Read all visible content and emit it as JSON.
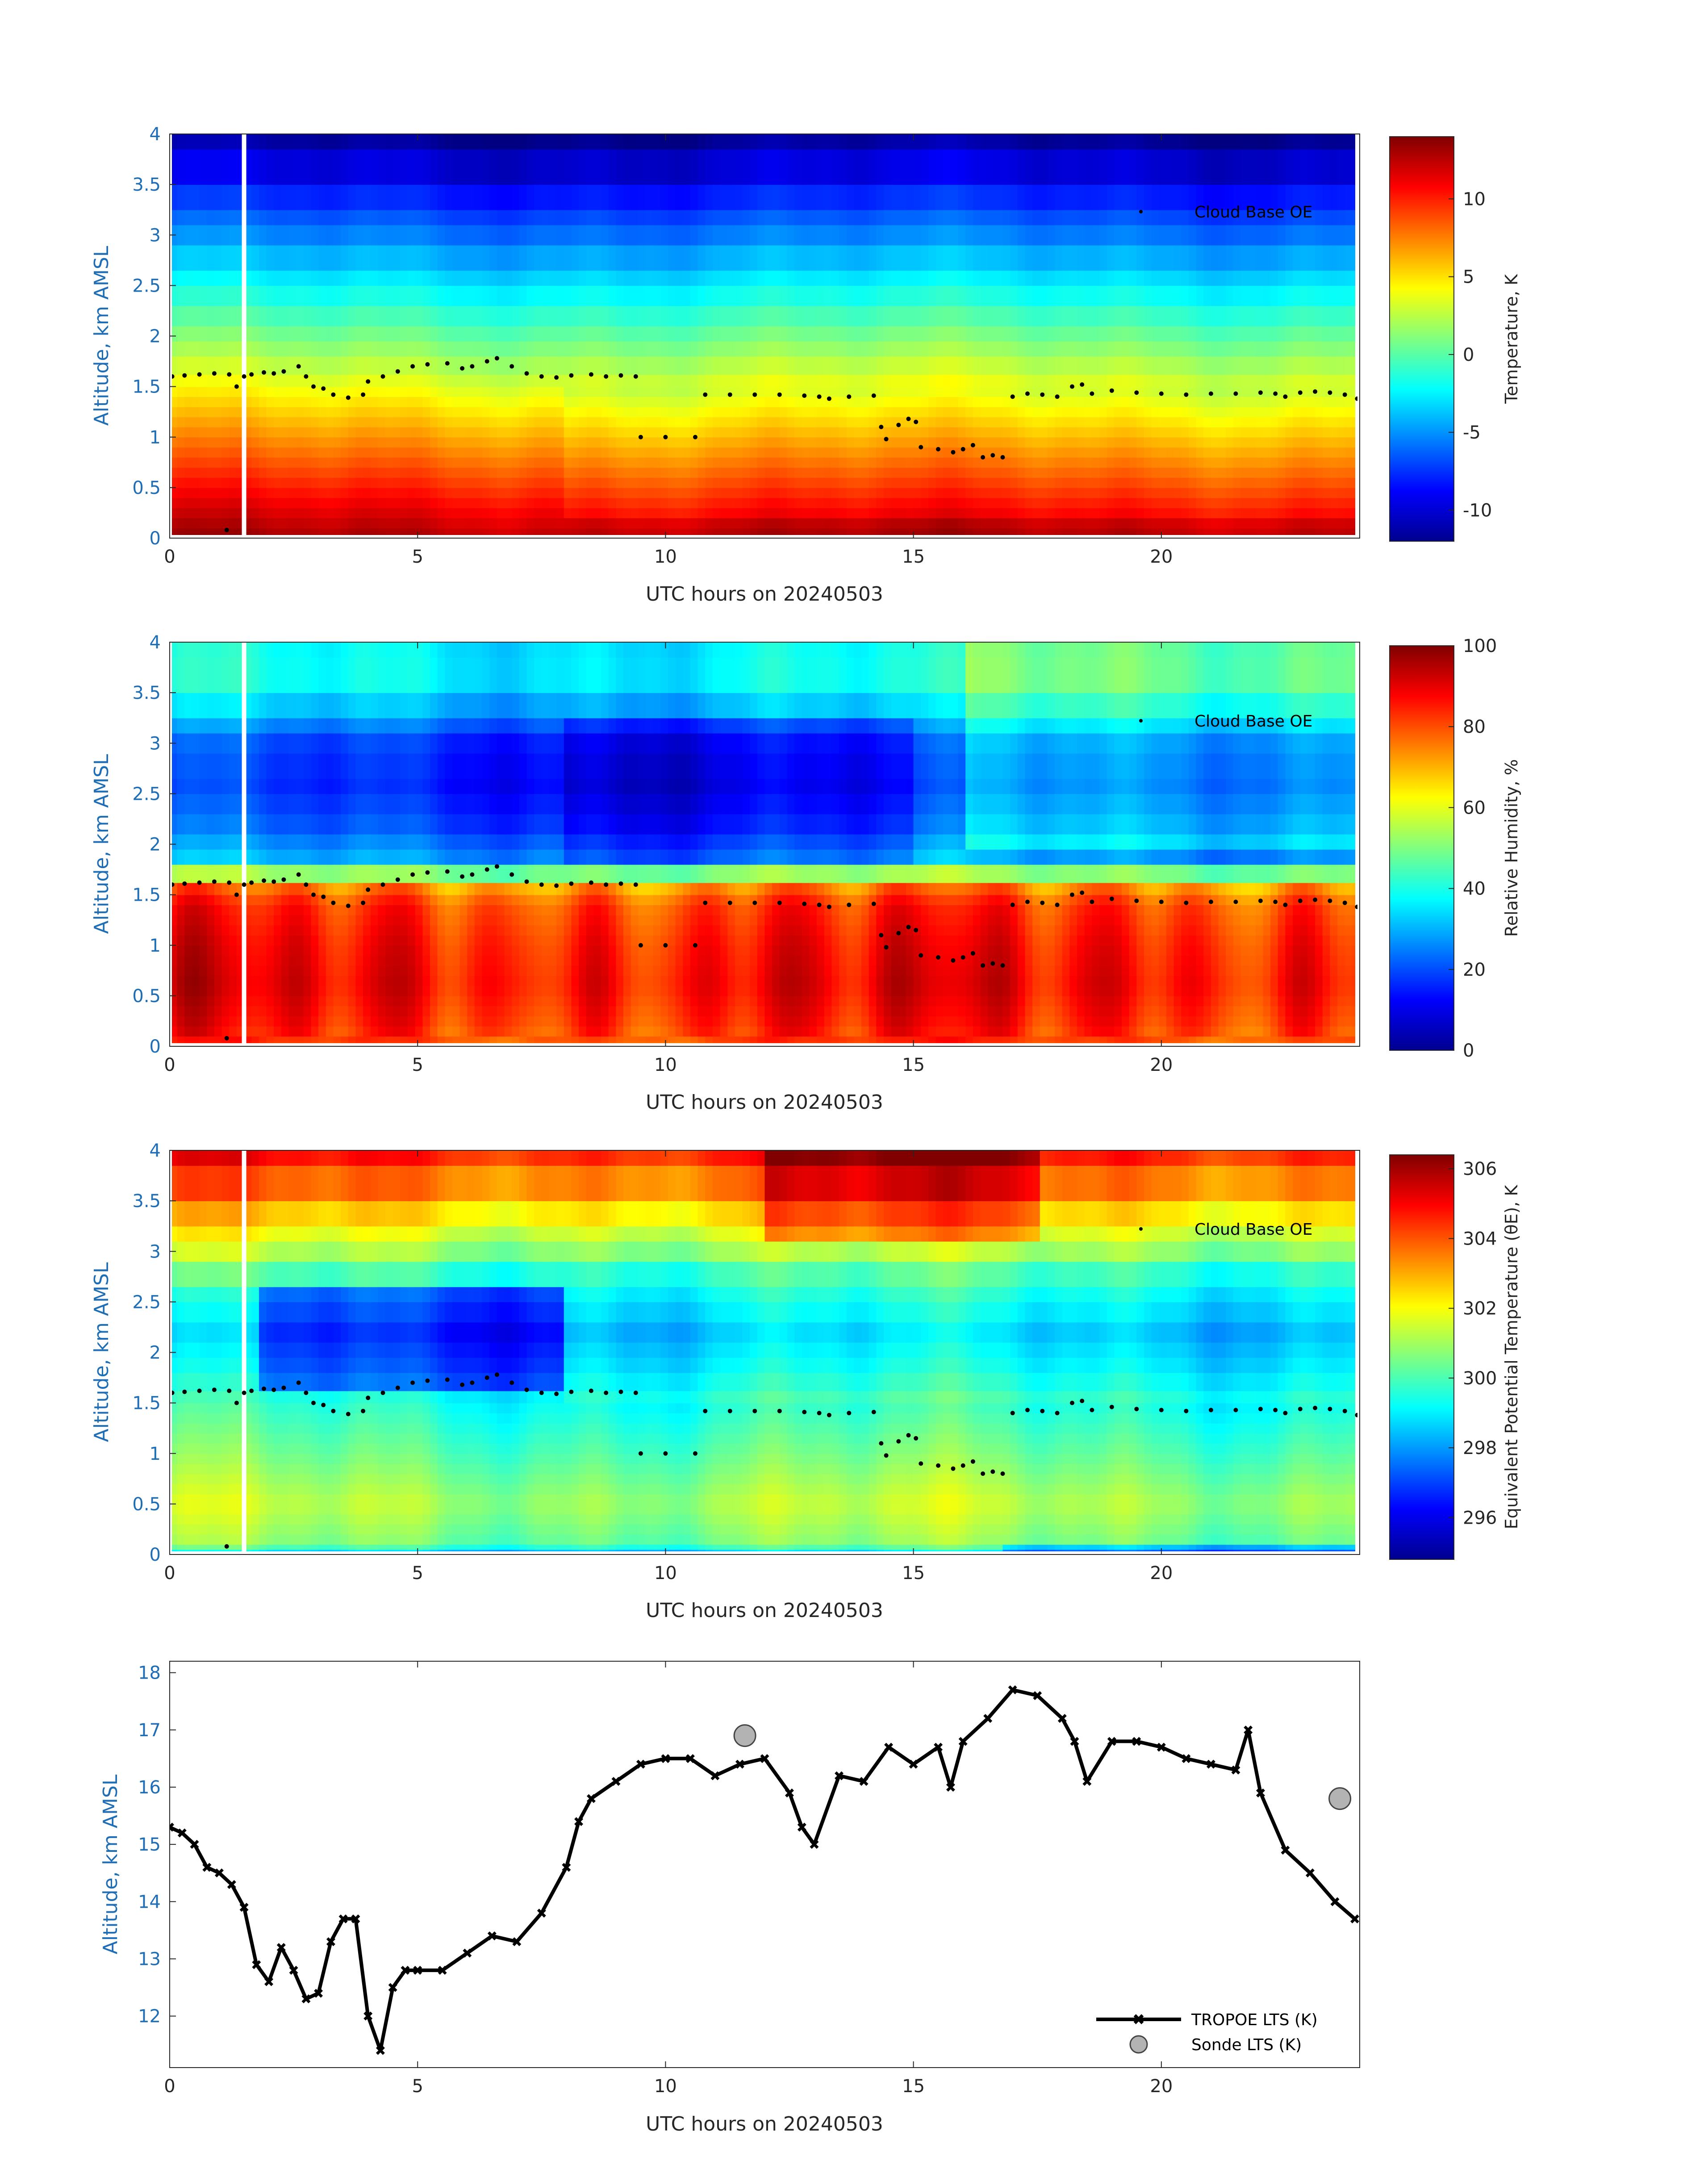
{
  "chart_data": [
    {
      "type": "heatmap",
      "panel": "temperature",
      "xlabel": "UTC hours on 20240503",
      "ylabel": "Altitude, km AMSL",
      "xlim": [
        0,
        24
      ],
      "ylim": [
        0,
        4
      ],
      "xticks": [
        "0",
        "5",
        "10",
        "15",
        "20"
      ],
      "yticks": [
        "0",
        "0.5",
        "1",
        "1.5",
        "2",
        "2.5",
        "3",
        "3.5",
        "4"
      ],
      "colorbar_label": "Temperature, K",
      "colorbar_range": [
        -12,
        14
      ],
      "colorbar_ticks": [
        "-10",
        "-5",
        "0",
        "5",
        "10"
      ],
      "legend": [
        "Cloud Base OE"
      ],
      "surface_value": 13,
      "lapse_per_km": -6.2
    },
    {
      "type": "heatmap",
      "panel": "relative_humidity",
      "xlabel": "UTC hours on 20240503",
      "ylabel": "Altitude, km AMSL",
      "xlim": [
        0,
        24
      ],
      "ylim": [
        0,
        4
      ],
      "xticks": [
        "0",
        "5",
        "10",
        "15",
        "20"
      ],
      "yticks": [
        "0",
        "0.5",
        "1",
        "1.5",
        "2",
        "2.5",
        "3",
        "3.5",
        "4"
      ],
      "colorbar_label": "Relative Humidity, %",
      "colorbar_range": [
        0,
        100
      ],
      "colorbar_ticks": [
        "0",
        "20",
        "40",
        "60",
        "80",
        "100"
      ],
      "legend": [
        "Cloud Base OE"
      ],
      "profile_levels_km": [
        0,
        0.2,
        0.6,
        1.0,
        1.4,
        1.62,
        1.8,
        2.2,
        2.6,
        3.0,
        3.4,
        3.8,
        4.0
      ],
      "profile_values": [
        80,
        84,
        88,
        86,
        82,
        72,
        30,
        20,
        15,
        18,
        32,
        40,
        35
      ]
    },
    {
      "type": "heatmap",
      "panel": "equivalent_potential_temperature",
      "xlabel": "UTC hours on 20240503",
      "ylabel": "Altitude, km AMSL",
      "xlim": [
        0,
        24
      ],
      "ylim": [
        0,
        4
      ],
      "xticks": [
        "0",
        "5",
        "10",
        "15",
        "20"
      ],
      "yticks": [
        "0",
        "0.5",
        "1",
        "1.5",
        "2",
        "2.5",
        "3",
        "3.5",
        "4"
      ],
      "colorbar_label": "Equivalent Potential Temperature (θE), K",
      "colorbar_range": [
        294.8,
        306.4
      ],
      "colorbar_ticks": [
        "296",
        "298",
        "300",
        "302",
        "304",
        "306"
      ],
      "legend": [
        "Cloud Base OE"
      ],
      "profile_levels_km": [
        0,
        0.1,
        0.5,
        1.0,
        1.5,
        1.8,
        2.2,
        2.6,
        3.0,
        3.4,
        3.8,
        4.0
      ],
      "profile_values": [
        298,
        300.5,
        301.2,
        300.3,
        299.5,
        298.8,
        298.2,
        299.0,
        301.0,
        302.6,
        304.2,
        305.0
      ]
    },
    {
      "type": "line",
      "panel": "lts",
      "xlabel": "UTC hours on 20240503",
      "ylabel": "Altitude, km AMSL",
      "xlim": [
        0,
        24
      ],
      "ylim": [
        11.1,
        18.2
      ],
      "xticks": [
        "0",
        "5",
        "10",
        "15",
        "20"
      ],
      "yticks": [
        "12",
        "13",
        "14",
        "15",
        "16",
        "17",
        "18"
      ],
      "legend": [
        "TROPOE LTS (K)",
        "Sonde LTS (K)"
      ],
      "series": [
        {
          "name": "TROPOE LTS (K)",
          "x": [
            0.0,
            0.25,
            0.5,
            0.75,
            1.0,
            1.25,
            1.5,
            1.75,
            2.0,
            2.25,
            2.5,
            2.75,
            3.0,
            3.25,
            3.5,
            3.75,
            4.0,
            4.25,
            4.5,
            4.75,
            5.0,
            5.5,
            6.0,
            6.5,
            7.0,
            7.5,
            8.0,
            8.25,
            8.5,
            9.0,
            9.5,
            10.0,
            10.5,
            11.0,
            11.5,
            12.0,
            12.5,
            12.75,
            13.0,
            13.5,
            14.0,
            14.5,
            15.0,
            15.5,
            15.75,
            16.0,
            16.5,
            17.0,
            17.5,
            18.0,
            18.25,
            18.5,
            19.0,
            19.5,
            20.0,
            20.5,
            21.0,
            21.5,
            21.75,
            22.0,
            22.5,
            23.0,
            23.5,
            23.9
          ],
          "y": [
            15.3,
            15.2,
            15.0,
            14.6,
            14.5,
            14.3,
            13.9,
            12.9,
            12.6,
            13.2,
            12.8,
            12.3,
            12.4,
            13.3,
            13.7,
            13.7,
            12.0,
            11.4,
            12.5,
            12.8,
            12.8,
            12.8,
            13.1,
            13.4,
            13.3,
            13.8,
            14.6,
            15.4,
            15.8,
            16.1,
            16.4,
            16.5,
            16.5,
            16.2,
            16.4,
            16.5,
            15.9,
            15.3,
            15.0,
            16.2,
            16.1,
            16.7,
            16.4,
            16.7,
            16.0,
            16.8,
            17.2,
            17.7,
            17.6,
            17.2,
            16.8,
            16.1,
            16.8,
            16.8,
            16.7,
            16.5,
            16.4,
            16.3,
            17.0,
            15.9,
            14.9,
            14.5,
            14.0,
            13.7
          ]
        },
        {
          "name": "Sonde LTS (K)",
          "x": [
            11.6,
            23.6
          ],
          "y": [
            16.9,
            15.8
          ]
        }
      ]
    }
  ],
  "cloud_base": {
    "name": "Cloud Base OE",
    "x": [
      0.05,
      0.3,
      0.6,
      0.9,
      1.2,
      1.35,
      1.5,
      1.65,
      1.9,
      2.1,
      2.3,
      2.6,
      2.75,
      2.9,
      3.1,
      3.3,
      3.6,
      3.9,
      4.0,
      4.3,
      4.6,
      4.9,
      5.2,
      5.6,
      5.9,
      6.1,
      6.4,
      6.6,
      6.9,
      7.2,
      7.5,
      7.8,
      8.1,
      8.5,
      8.8,
      9.1,
      9.4,
      9.5,
      10.0,
      10.6,
      10.8,
      11.3,
      11.8,
      12.3,
      12.8,
      13.1,
      13.3,
      13.7,
      14.2,
      14.35,
      14.45,
      14.7,
      14.9,
      15.05,
      15.15,
      15.5,
      15.8,
      16.0,
      16.2,
      16.4,
      16.6,
      16.8,
      17.0,
      17.3,
      17.6,
      17.9,
      18.2,
      18.4,
      18.6,
      19.0,
      19.5,
      20.0,
      20.5,
      21.0,
      21.5,
      22.0,
      22.3,
      22.5,
      22.8,
      23.1,
      23.4,
      23.7,
      23.95
    ],
    "y": [
      1.6,
      1.61,
      1.62,
      1.63,
      1.62,
      1.5,
      1.6,
      1.62,
      1.64,
      1.63,
      1.65,
      1.7,
      1.6,
      1.5,
      1.48,
      1.42,
      1.39,
      1.42,
      1.55,
      1.6,
      1.65,
      1.7,
      1.72,
      1.73,
      1.68,
      1.7,
      1.75,
      1.78,
      1.7,
      1.63,
      1.6,
      1.59,
      1.61,
      1.62,
      1.6,
      1.61,
      1.6,
      1.0,
      1.0,
      1.0,
      1.42,
      1.42,
      1.42,
      1.42,
      1.41,
      1.4,
      1.38,
      1.4,
      1.41,
      1.1,
      0.98,
      1.12,
      1.18,
      1.15,
      0.9,
      0.88,
      0.85,
      0.88,
      0.92,
      0.8,
      0.82,
      0.8,
      1.4,
      1.43,
      1.42,
      1.4,
      1.5,
      1.52,
      1.43,
      1.46,
      1.44,
      1.43,
      1.42,
      1.43,
      1.43,
      1.44,
      1.43,
      1.4,
      1.44,
      1.45,
      1.44,
      1.42,
      1.38
    ]
  },
  "surface_point": {
    "x": 1.15,
    "y": 0.08
  },
  "gap": {
    "x": 1.5
  }
}
